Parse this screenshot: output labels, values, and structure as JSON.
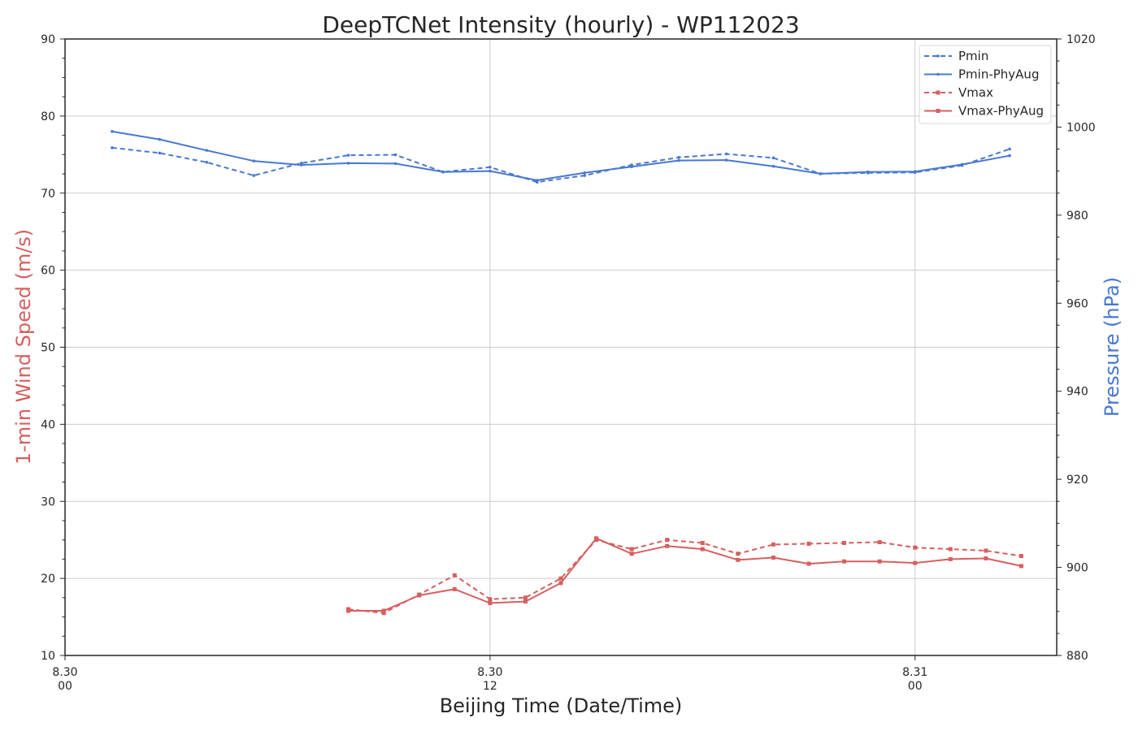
{
  "chart_data": {
    "type": "line",
    "title": "DeepTCNet Intensity (hourly) - WP112023",
    "xlabel": "Beijing Time (Date/Time)",
    "ylabel_left": "1-min Wind Speed (m/s)",
    "ylabel_right": "Pressure (hPa)",
    "xlim_hours": [
      0,
      28
    ],
    "ylim_left": [
      10,
      90
    ],
    "ylim_right": [
      880,
      1020
    ],
    "x_ticks": [
      {
        "hour": 0,
        "date": "8.30",
        "time": "00"
      },
      {
        "hour": 12,
        "date": "8.30",
        "time": "12"
      },
      {
        "hour": 24,
        "date": "8.31",
        "time": "00"
      }
    ],
    "y_ticks_left": [
      10,
      20,
      30,
      40,
      50,
      60,
      70,
      80,
      90
    ],
    "y_ticks_right": [
      880,
      900,
      920,
      940,
      960,
      980,
      1000,
      1020
    ],
    "grid": true,
    "legend_position": "top-right",
    "colors": {
      "wind": "#d65f5f",
      "pressure": "#4878d0"
    },
    "series": [
      {
        "name": "Pmin",
        "axis": "right",
        "style": "dashed",
        "color": "#4878d0",
        "marker": "dot",
        "x": [
          1.33,
          2.67,
          4.0,
          5.33,
          6.67,
          8.0,
          9.33,
          10.67,
          12.0,
          13.33,
          14.67,
          16.0,
          17.33,
          18.67,
          20.0,
          21.33,
          22.67,
          24.0,
          25.33,
          26.67
        ],
        "y": [
          995.3,
          994.1,
          992.0,
          989.0,
          991.8,
          993.6,
          993.7,
          989.8,
          990.9,
          987.5,
          989.0,
          991.4,
          993.1,
          993.9,
          993.0,
          989.4,
          989.6,
          989.7,
          991.3,
          995.0
        ]
      },
      {
        "name": "Pmin-PhyAug",
        "axis": "right",
        "style": "solid",
        "color": "#4878d0",
        "marker": "dot",
        "x": [
          1.33,
          2.67,
          4.0,
          5.33,
          6.67,
          8.0,
          9.33,
          10.67,
          12.0,
          13.33,
          14.67,
          16.0,
          17.33,
          18.67,
          20.0,
          21.33,
          22.67,
          24.0,
          25.33,
          26.67
        ],
        "y": [
          999.0,
          997.2,
          994.7,
          992.3,
          991.4,
          991.8,
          991.7,
          989.8,
          990.0,
          987.9,
          989.6,
          991.0,
          992.4,
          992.5,
          991.1,
          989.4,
          989.8,
          989.9,
          991.5,
          993.5
        ]
      },
      {
        "name": "Vmax",
        "axis": "left",
        "style": "dashed",
        "color": "#d65f5f",
        "marker": "square",
        "x": [
          8.0,
          9.0,
          10.0,
          11.0,
          12.0,
          13.0,
          14.0,
          15.0,
          16.0,
          17.0,
          18.0,
          19.0,
          20.0,
          21.0,
          22.0,
          23.0,
          24.0,
          25.0,
          26.0,
          27.0
        ],
        "y": [
          16.0,
          15.5,
          17.9,
          20.4,
          17.3,
          17.5,
          20.0,
          25.0,
          23.8,
          25.0,
          24.6,
          23.2,
          24.4,
          24.5,
          24.6,
          24.7,
          24.0,
          23.8,
          23.6,
          22.9
        ]
      },
      {
        "name": "Vmax-PhyAug",
        "axis": "left",
        "style": "solid",
        "color": "#d65f5f",
        "marker": "square",
        "x": [
          8.0,
          9.0,
          10.0,
          11.0,
          12.0,
          13.0,
          14.0,
          15.0,
          16.0,
          17.0,
          18.0,
          19.0,
          20.0,
          21.0,
          22.0,
          23.0,
          24.0,
          25.0,
          26.0,
          27.0
        ],
        "y": [
          15.8,
          15.8,
          17.8,
          18.6,
          16.8,
          17.0,
          19.4,
          25.2,
          23.2,
          24.2,
          23.8,
          22.4,
          22.7,
          21.9,
          22.2,
          22.2,
          22.0,
          22.5,
          22.6,
          21.6
        ]
      }
    ]
  }
}
